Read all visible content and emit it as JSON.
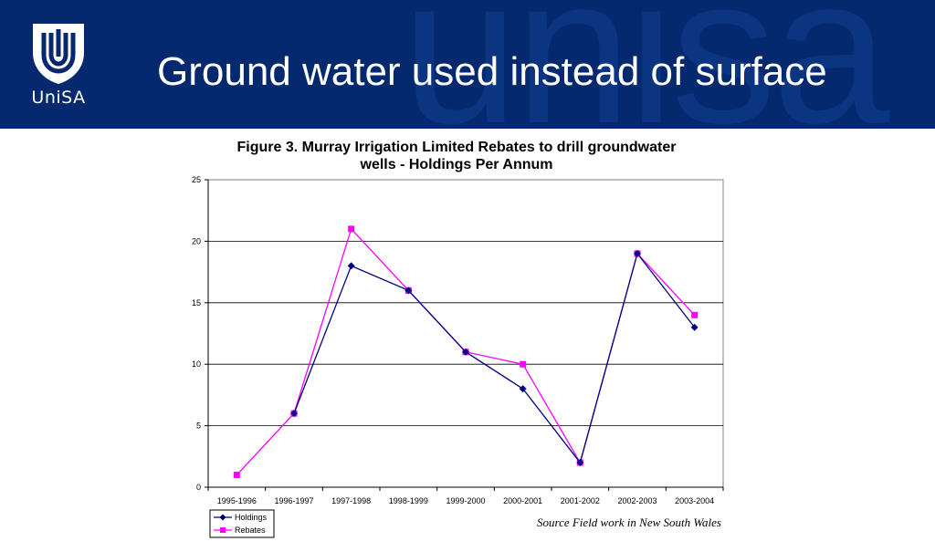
{
  "header": {
    "title": "Ground water used instead of surface",
    "logo_text": "UniSA",
    "watermark_text": "unisa",
    "background_color": "#05296e"
  },
  "chart_data": {
    "type": "line",
    "title": "Figure 3. Murray Irrigation Limited Rebates to drill groundwater wells - Holdings Per Annum",
    "title_lines": [
      "Figure 3. Murray Irrigation Limited Rebates to drill groundwater",
      "wells - Holdings Per Annum"
    ],
    "categories": [
      "1995-1996",
      "1996-1997",
      "1997-1998",
      "1998-1999",
      "1999-2000",
      "2000-2001",
      "2001-2002",
      "2002-2003",
      "2003-2004"
    ],
    "series": [
      {
        "name": "Holdings",
        "color": "#000080",
        "marker": "diamond",
        "values": [
          null,
          6,
          18,
          16,
          11,
          8,
          2,
          19,
          13
        ]
      },
      {
        "name": "Rebates",
        "color": "#ff00ff",
        "marker": "square",
        "values": [
          1,
          6,
          21,
          16,
          11,
          10,
          2,
          19,
          14
        ]
      }
    ],
    "ylim": [
      0,
      25
    ],
    "yticks": [
      "0",
      "5",
      "10",
      "15",
      "20",
      "25"
    ],
    "xlabel": "",
    "ylabel": "",
    "grid": true,
    "legend_position": "bottom-left"
  },
  "source_note": "Source Field work in New South Wales"
}
